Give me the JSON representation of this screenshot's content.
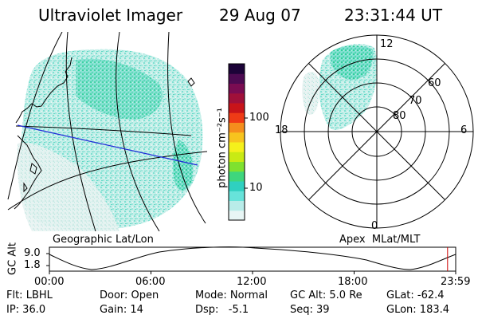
{
  "header": {
    "title": "Ultraviolet Imager",
    "date": "29 Aug 07",
    "time": "23:31:44 UT"
  },
  "colors": {
    "image_fill": "#bfeee6",
    "image_speckle": "#55dcc0",
    "image_bright": "#36d59a",
    "track_line": "#1f2bd8",
    "time_marker": "#cc0000",
    "colorbar_scale": [
      "#e8f6f5",
      "#b8ece9",
      "#67e3da",
      "#2fd0c0",
      "#3ed67d",
      "#7fe12f",
      "#c9ea14",
      "#f5f01b",
      "#f7c41e",
      "#f58e1d",
      "#ef3b16",
      "#c8141a",
      "#a0103a",
      "#7a0c52",
      "#4d0a52",
      "#1c0338"
    ]
  },
  "left_panel": {
    "caption": "Geographic Lat/Lon",
    "icons": [
      "coastline-map-icon",
      "latlon-grid-icon"
    ]
  },
  "colorbar": {
    "unit_label": "photon cm⁻²s⁻¹",
    "tick_100": "100",
    "tick_10": "10"
  },
  "right_panel": {
    "caption": "Apex  MLat/MLT",
    "mlt_12": "12",
    "mlt_18": "18",
    "mlt_6": "6",
    "mlt_0": "0",
    "lat_60": "60",
    "lat_70": "70",
    "lat_80": "80"
  },
  "altitude_plot": {
    "axis_label": "GC Alt",
    "y_top": "9.0",
    "y_bottom": "1.8",
    "x_ticks": [
      "00:00",
      "06:00",
      "12:00",
      "18:00",
      "23:59"
    ],
    "marker_fraction": 0.98
  },
  "status": {
    "flt": "Flt: LBHL",
    "ip": "IP: 36.0",
    "door": "Door: Open",
    "gain": "Gain: 14",
    "mode": "Mode: Normal",
    "dsp": "Dsp:   -5.1",
    "gc_alt": "GC Alt: 5.0 Re",
    "seq": "Seq: 39",
    "glat": "GLat: -62.4",
    "glon": "GLon: 183.4"
  }
}
